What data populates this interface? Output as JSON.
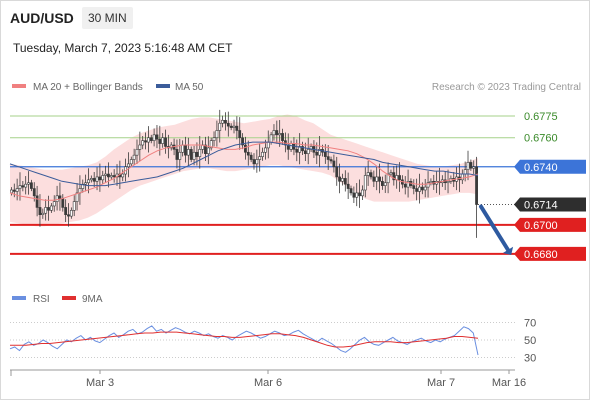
{
  "header": {
    "pair": "AUD/USD",
    "timeframe": "30 MIN",
    "datetime": "Tuesday, March 7, 2023 5:16:48 AM CET"
  },
  "legend": {
    "ma20": "MA 20 + Bollinger Bands",
    "ma50": "MA 50",
    "credit": "Research © 2023 Trading Central",
    "rsi": "RSI",
    "rsi_ma": "9MA"
  },
  "colors": {
    "candle": "#3a3a3a",
    "ma20": "#f08080",
    "bands": "#fbd8d8",
    "ma50": "#3b5c9a",
    "green_line": "#a6d28a",
    "blue_line": "#3c74d8",
    "red_line": "#e02020",
    "arrow": "#2e5aa0",
    "rsi": "#6a8fe0",
    "rsi_ma": "#e03030"
  },
  "chart_data": [
    {
      "type": "candlestick",
      "ylim": [
        0.6662,
        0.6786
      ],
      "x_labels": [
        "Mar 3",
        "Mar 6",
        "Mar 7",
        "Mar 16"
      ],
      "price_levels": [
        {
          "value": 0.6775,
          "label": "0.6775",
          "style": "green"
        },
        {
          "value": 0.676,
          "label": "0.6760",
          "style": "green"
        },
        {
          "value": 0.674,
          "label": "0.6740",
          "style": "blue"
        },
        {
          "value": 0.6714,
          "label": "0.6714",
          "style": "current"
        },
        {
          "value": 0.67,
          "label": "0.6700",
          "style": "red"
        },
        {
          "value": 0.668,
          "label": "0.6680",
          "style": "red"
        }
      ],
      "close_path": [
        0.6724,
        0.6723,
        0.6725,
        0.6727,
        0.6726,
        0.6728,
        0.6729,
        0.6725,
        0.672,
        0.6712,
        0.6707,
        0.6708,
        0.6712,
        0.671,
        0.6713,
        0.6716,
        0.672,
        0.6718,
        0.6712,
        0.6707,
        0.6706,
        0.671,
        0.6716,
        0.6722,
        0.6725,
        0.6728,
        0.6729,
        0.6731,
        0.6732,
        0.673,
        0.6733,
        0.6731,
        0.6734,
        0.6735,
        0.6733,
        0.6734,
        0.6733,
        0.6735,
        0.6733,
        0.6735,
        0.674,
        0.6742,
        0.6745,
        0.6748,
        0.6752,
        0.6755,
        0.6758,
        0.6757,
        0.676,
        0.6758,
        0.6762,
        0.6759,
        0.6756,
        0.676,
        0.6754,
        0.6753,
        0.6755,
        0.6752,
        0.6745,
        0.675,
        0.6755,
        0.6748,
        0.6752,
        0.6745,
        0.675,
        0.6747,
        0.6752,
        0.6755,
        0.6749,
        0.6753,
        0.6758,
        0.676,
        0.6765,
        0.677,
        0.6772,
        0.677,
        0.6768,
        0.6767,
        0.6768,
        0.6765,
        0.676,
        0.6755,
        0.675,
        0.6748,
        0.6745,
        0.6742,
        0.6745,
        0.6747,
        0.675,
        0.6753,
        0.6757,
        0.6762,
        0.6765,
        0.6762,
        0.6763,
        0.6758,
        0.6755,
        0.6752,
        0.6756,
        0.6752,
        0.675,
        0.6754,
        0.6751,
        0.6749,
        0.6752,
        0.6754,
        0.675,
        0.6748,
        0.6752,
        0.675,
        0.6747,
        0.6745,
        0.6744,
        0.674,
        0.6733,
        0.673,
        0.6732,
        0.6728,
        0.6725,
        0.6722,
        0.6719,
        0.6722,
        0.672,
        0.6724,
        0.6734,
        0.6736,
        0.6733,
        0.673,
        0.6733,
        0.673,
        0.6727,
        0.6729,
        0.6735,
        0.6736,
        0.6731,
        0.6734,
        0.6731,
        0.6728,
        0.6726,
        0.673,
        0.6727,
        0.6725,
        0.6723,
        0.6726,
        0.6724,
        0.6726,
        0.6729,
        0.673,
        0.6728,
        0.673,
        0.6729,
        0.6731,
        0.6729,
        0.673,
        0.6732,
        0.673,
        0.6733,
        0.6731,
        0.6735,
        0.6738,
        0.6743,
        0.6739,
        0.674,
        0.6714
      ],
      "ma20_path": [
        0.6722,
        0.672,
        0.6719,
        0.6718,
        0.6717,
        0.6717,
        0.6718,
        0.672,
        0.6722,
        0.6724,
        0.6726,
        0.6729,
        0.6732,
        0.6736,
        0.674,
        0.6744,
        0.6748,
        0.6751,
        0.6753,
        0.6754,
        0.6755,
        0.6755,
        0.6755,
        0.6754,
        0.6753,
        0.6752,
        0.6752,
        0.6753,
        0.6755,
        0.6756,
        0.6757,
        0.6757,
        0.6756,
        0.6756,
        0.6755,
        0.6755,
        0.6754,
        0.6753,
        0.6752,
        0.6751,
        0.6749,
        0.6746,
        0.6742,
        0.6737,
        0.6733,
        0.673,
        0.6729,
        0.6728,
        0.6728,
        0.6729,
        0.673,
        0.6731,
        0.6732,
        0.6733,
        0.6735
      ],
      "bb_upper_path": [
        0.6742,
        0.6741,
        0.674,
        0.6739,
        0.6738,
        0.6738,
        0.6738,
        0.6739,
        0.674,
        0.6741,
        0.6743,
        0.6747,
        0.6752,
        0.6756,
        0.676,
        0.6763,
        0.6765,
        0.6767,
        0.6768,
        0.6769,
        0.6771,
        0.6773,
        0.6774,
        0.6774,
        0.6773,
        0.6772,
        0.6771,
        0.677,
        0.6771,
        0.6772,
        0.6773,
        0.6775,
        0.6776,
        0.6775,
        0.6772,
        0.677,
        0.6766,
        0.6762,
        0.676,
        0.6758,
        0.6756,
        0.6754,
        0.6752,
        0.675,
        0.6748,
        0.6746,
        0.6744,
        0.6742,
        0.6741,
        0.674,
        0.674,
        0.6741,
        0.6742,
        0.6744,
        0.6746
      ],
      "bb_lower_path": [
        0.6702,
        0.6701,
        0.67,
        0.6699,
        0.6699,
        0.67,
        0.6701,
        0.6702,
        0.6703,
        0.6705,
        0.6708,
        0.6712,
        0.6716,
        0.672,
        0.6724,
        0.6727,
        0.6729,
        0.6731,
        0.6733,
        0.6735,
        0.6737,
        0.6738,
        0.6739,
        0.6739,
        0.6738,
        0.6737,
        0.6737,
        0.6738,
        0.6739,
        0.674,
        0.6741,
        0.6741,
        0.674,
        0.6739,
        0.6738,
        0.6737,
        0.6736,
        0.6734,
        0.673,
        0.6726,
        0.6722,
        0.6718,
        0.6716,
        0.6716,
        0.6716,
        0.6716,
        0.6716,
        0.6717,
        0.6718,
        0.6719,
        0.672,
        0.6721,
        0.6722,
        0.6722,
        0.6721
      ],
      "ma50_path": [
        0.6742,
        0.674,
        0.6738,
        0.6736,
        0.6734,
        0.6732,
        0.673,
        0.6729,
        0.6728,
        0.6727,
        0.6727,
        0.6727,
        0.6728,
        0.6729,
        0.673,
        0.6731,
        0.6732,
        0.6733,
        0.6735,
        0.6737,
        0.6739,
        0.6742,
        0.6745,
        0.6748,
        0.6751,
        0.6753,
        0.6755,
        0.6756,
        0.6757,
        0.6757,
        0.6757,
        0.6756,
        0.6755,
        0.6754,
        0.6753,
        0.6752,
        0.6751,
        0.675,
        0.6749,
        0.6748,
        0.6747,
        0.6746,
        0.6745,
        0.6743,
        0.6742,
        0.6741,
        0.674,
        0.6739,
        0.6738,
        0.6737,
        0.6737,
        0.6736,
        0.6735,
        0.6735,
        0.6734
      ],
      "forecast_arrow": {
        "from": 0.6714,
        "to": 0.668
      }
    },
    {
      "type": "line",
      "title": "RSI",
      "ylim": [
        25,
        75
      ],
      "y_ticks": [
        70,
        50,
        30
      ],
      "rsi_path": [
        40,
        42,
        38,
        45,
        48,
        44,
        46,
        50,
        47,
        43,
        40,
        45,
        50,
        48,
        52,
        55,
        50,
        53,
        49,
        47,
        51,
        55,
        58,
        53,
        56,
        60,
        62,
        57,
        59,
        63,
        66,
        60,
        62,
        58,
        61,
        64,
        62,
        59,
        57,
        60,
        58,
        55,
        57,
        54,
        52,
        55,
        53,
        50,
        54,
        57,
        60,
        58,
        55,
        52,
        54,
        57,
        60,
        58,
        55,
        56,
        59,
        61,
        57,
        54,
        51,
        48,
        52,
        49,
        46,
        42,
        38,
        36,
        40,
        45,
        50,
        53,
        48,
        45,
        44,
        47,
        50,
        53,
        49,
        47,
        45,
        48,
        50,
        52,
        49,
        47,
        50,
        48,
        51,
        53,
        55,
        60,
        65,
        63,
        58,
        33
      ],
      "rsi_ma_path": [
        44,
        44,
        44,
        45,
        46,
        46,
        47,
        48,
        49,
        50,
        51,
        52,
        53,
        54,
        55,
        56,
        57,
        58,
        58,
        59,
        59,
        59,
        58,
        57,
        56,
        55,
        54,
        54,
        53,
        53,
        54,
        55,
        56,
        57,
        57,
        56,
        55,
        53,
        50,
        47,
        44,
        42,
        42,
        43,
        45,
        47,
        48,
        48,
        48,
        47,
        47,
        48,
        49,
        50,
        51,
        52,
        54,
        54,
        53,
        52
      ]
    }
  ]
}
